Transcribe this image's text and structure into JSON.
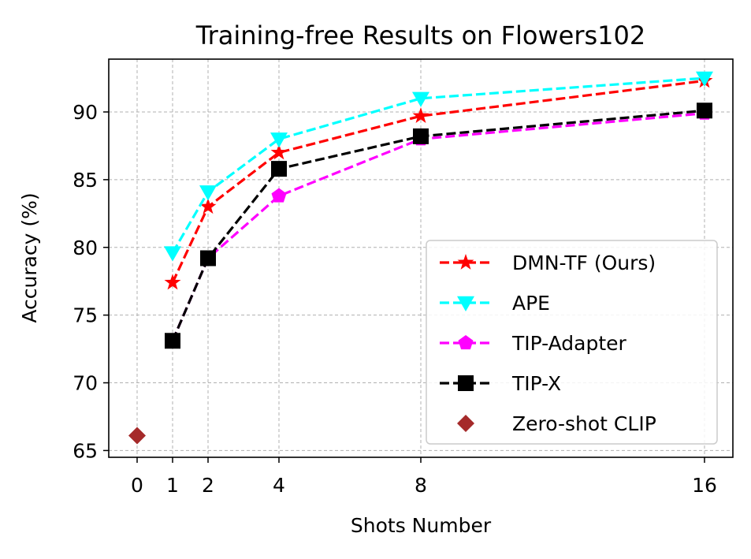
{
  "chart_data": {
    "type": "line",
    "title": "Training-free Results on Flowers102",
    "xlabel": "Shots Number",
    "ylabel": "Accuracy (%)",
    "xlim": [
      -0.8,
      16.8
    ],
    "ylim": [
      64.5,
      93.9
    ],
    "xticks": [
      0,
      1,
      2,
      4,
      8,
      16
    ],
    "yticks": [
      65,
      70,
      75,
      80,
      85,
      90
    ],
    "grid": true,
    "legend_position": "lower right",
    "series": [
      {
        "name": "DMN-TF (Ours)",
        "color": "#ff0000",
        "marker": "star",
        "linestyle": "dashed",
        "x": [
          1,
          2,
          4,
          8,
          16
        ],
        "y": [
          77.4,
          83.0,
          87.0,
          89.7,
          92.3
        ]
      },
      {
        "name": "APE",
        "color": "#00ffff",
        "marker": "triangle-down",
        "linestyle": "dashed",
        "x": [
          1,
          2,
          4,
          8,
          16
        ],
        "y": [
          79.6,
          84.1,
          88.0,
          91.0,
          92.5
        ]
      },
      {
        "name": "TIP-Adapter",
        "color": "#ff00ff",
        "marker": "pentagon",
        "linestyle": "dashed",
        "x": [
          1,
          2,
          4,
          8,
          16
        ],
        "y": [
          73.1,
          79.2,
          83.8,
          88.0,
          89.9
        ]
      },
      {
        "name": "TIP-X",
        "color": "#000000",
        "marker": "square",
        "linestyle": "dashed",
        "x": [
          1,
          2,
          4,
          8,
          16
        ],
        "y": [
          73.1,
          79.2,
          85.8,
          88.2,
          90.1
        ]
      },
      {
        "name": "Zero-shot CLIP",
        "color": "#a52a2a",
        "marker": "diamond",
        "linestyle": "none",
        "x": [
          0
        ],
        "y": [
          66.1
        ]
      }
    ]
  }
}
